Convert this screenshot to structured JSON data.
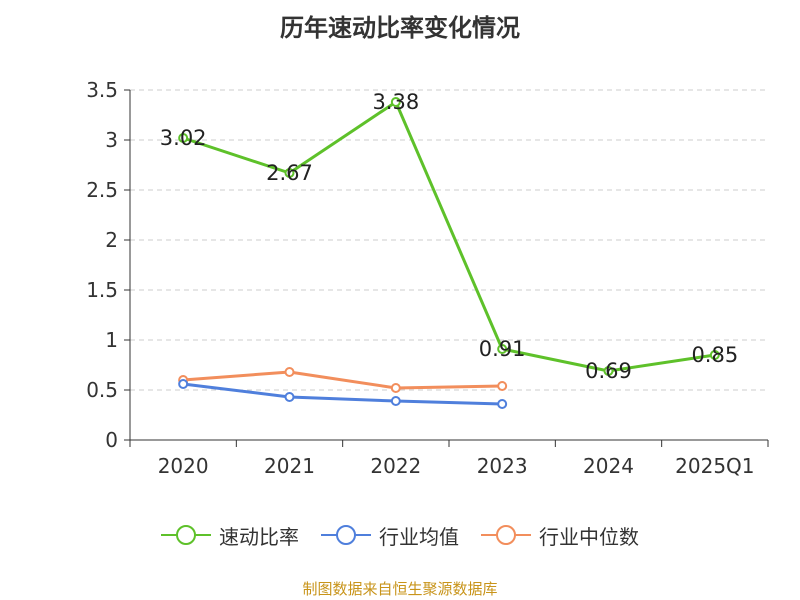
{
  "chart_data": {
    "type": "line",
    "title": "历年速动比率变化情况",
    "categories": [
      "2020",
      "2021",
      "2022",
      "2023",
      "2024",
      "2025Q1"
    ],
    "ylim": [
      0,
      3.5
    ],
    "yticks": [
      "0",
      "0.5",
      "1",
      "1.5",
      "2",
      "2.5",
      "3",
      "3.5"
    ],
    "grid": true,
    "legend_position": "bottom",
    "series": [
      {
        "name": "速动比率",
        "color": "#5ec12a",
        "values": [
          3.02,
          2.67,
          3.38,
          0.91,
          0.69,
          0.85
        ],
        "labels": [
          "3.02",
          "2.67",
          "3.38",
          "0.91",
          "0.69",
          "0.85"
        ],
        "show_labels": true
      },
      {
        "name": "行业均值",
        "color": "#4f7fdc",
        "values": [
          0.56,
          0.43,
          0.39,
          0.36,
          null,
          null
        ],
        "show_labels": false
      },
      {
        "name": "行业中位数",
        "color": "#f28e5c",
        "values": [
          0.6,
          0.68,
          0.52,
          0.54,
          null,
          null
        ],
        "show_labels": false
      }
    ]
  },
  "source_text": "制图数据来自恒生聚源数据库"
}
